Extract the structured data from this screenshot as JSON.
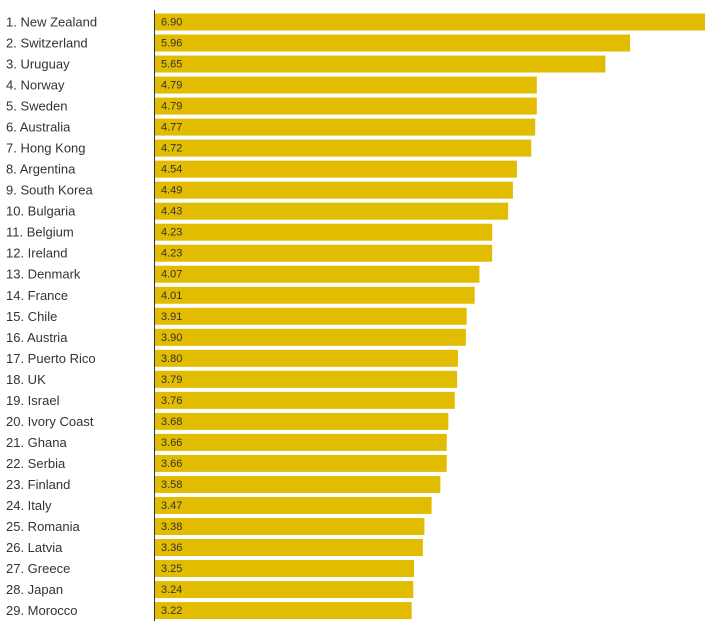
{
  "chart_data": {
    "type": "bar",
    "orientation": "horizontal",
    "title": "",
    "xlabel": "",
    "ylabel": "",
    "xlim": [
      0,
      6.9
    ],
    "grid": false,
    "bar_color": "#E2BC00",
    "axis_color": "#333333",
    "categories": [
      "1. New Zealand",
      "2. Switzerland",
      "3. Uruguay",
      "4. Norway",
      "5. Sweden",
      "6. Australia",
      "7. Hong Kong",
      "8. Argentina",
      "9. South Korea",
      "10. Bulgaria",
      "11. Belgium",
      "12. Ireland",
      "13. Denmark",
      "14. France",
      "15. Chile",
      "16. Austria",
      "17. Puerto Rico",
      "18. UK",
      "19. Israel",
      "20. Ivory Coast",
      "21. Ghana",
      "22. Serbia",
      "23. Finland",
      "24. Italy",
      "25. Romania",
      "26. Latvia",
      "27. Greece",
      "28. Japan",
      "29. Morocco"
    ],
    "values": [
      6.9,
      5.96,
      5.65,
      4.79,
      4.79,
      4.77,
      4.72,
      4.54,
      4.49,
      4.43,
      4.23,
      4.23,
      4.07,
      4.01,
      3.91,
      3.9,
      3.8,
      3.79,
      3.76,
      3.68,
      3.66,
      3.66,
      3.58,
      3.47,
      3.38,
      3.36,
      3.25,
      3.24,
      3.22
    ],
    "value_labels": [
      "6.90",
      "5.96",
      "5.65",
      "4.79",
      "4.79",
      "4.77",
      "4.72",
      "4.54",
      "4.49",
      "4.43",
      "4.23",
      "4.23",
      "4.07",
      "4.01",
      "3.91",
      "3.90",
      "3.80",
      "3.79",
      "3.76",
      "3.68",
      "3.66",
      "3.66",
      "3.58",
      "3.47",
      "3.38",
      "3.36",
      "3.25",
      "3.24",
      "3.22"
    ]
  }
}
